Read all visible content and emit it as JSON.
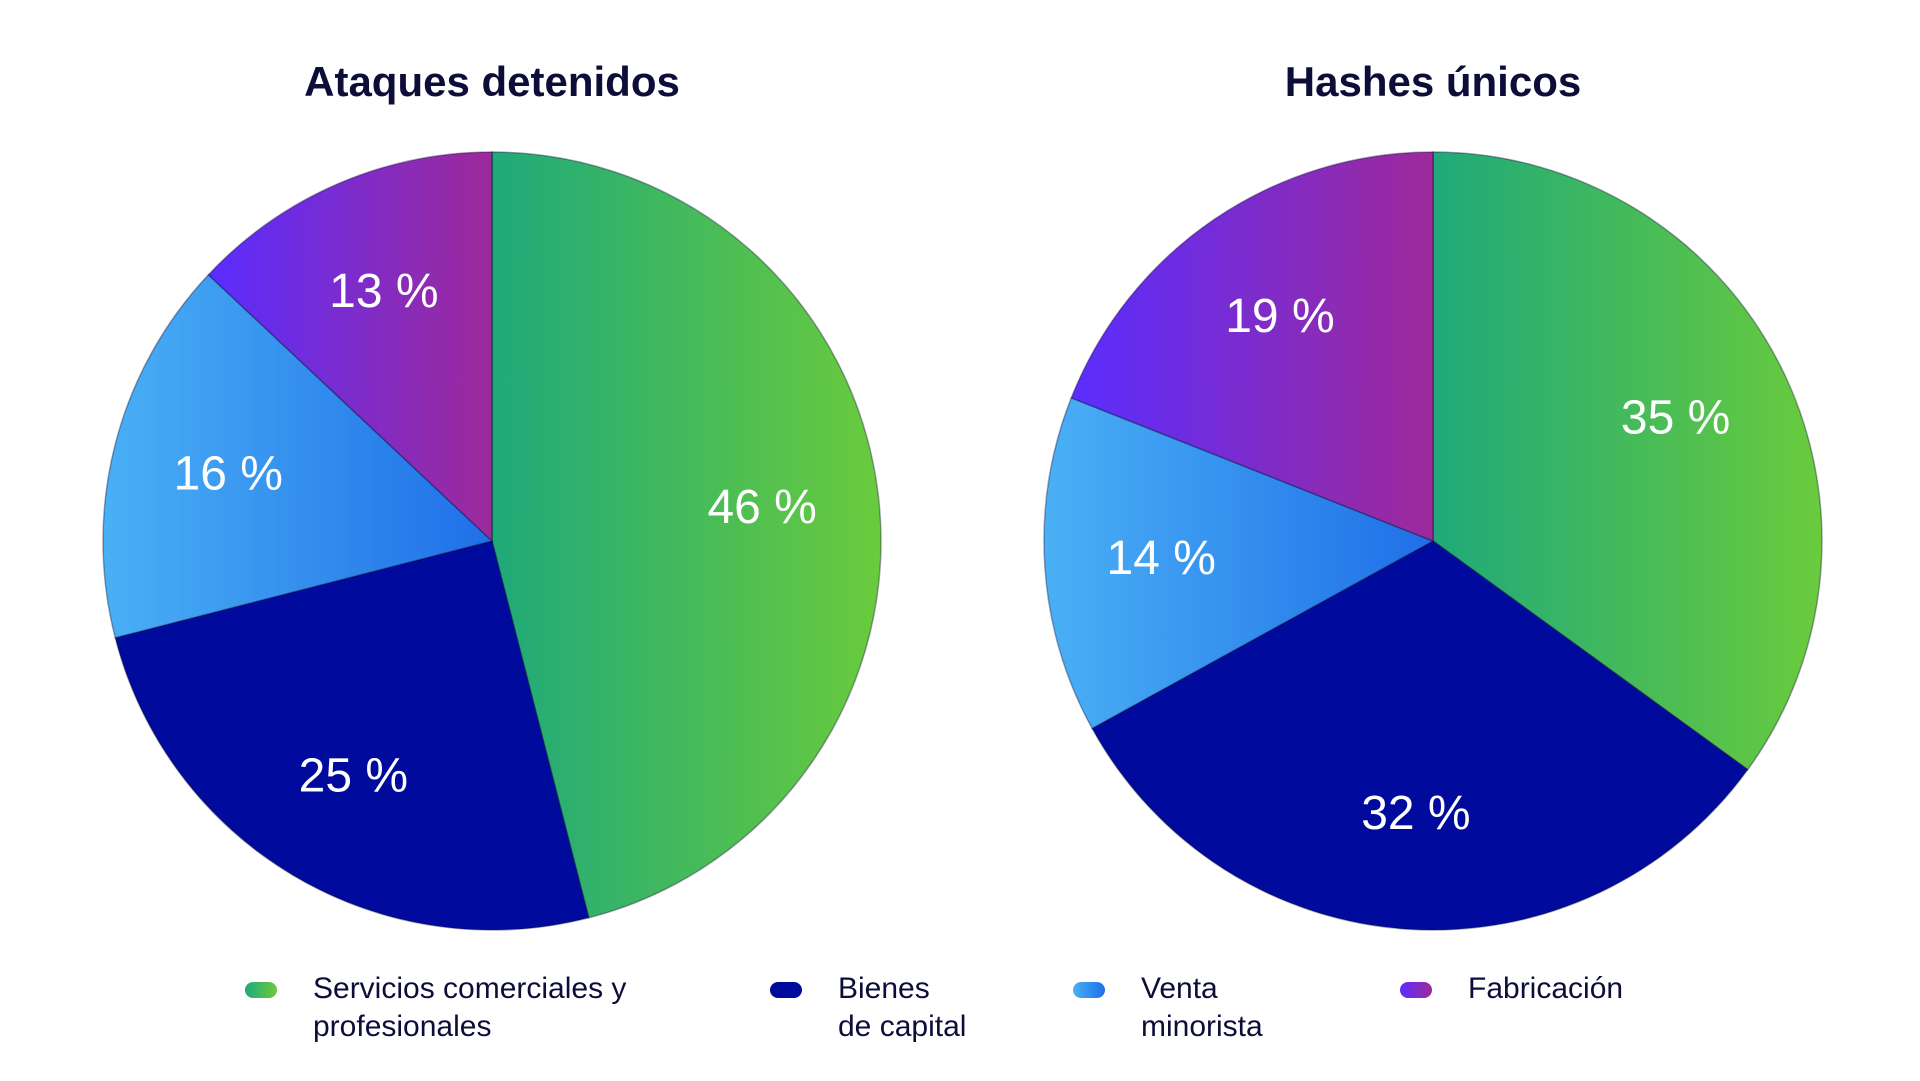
{
  "chart_data": [
    {
      "type": "pie",
      "title": "Ataques detenidos",
      "categories": [
        "Servicios comerciales y profesionales",
        "Bienes de capital",
        "Venta minorista",
        "Fabricación"
      ],
      "values": [
        46,
        25,
        16,
        13
      ],
      "labels": [
        "46 %",
        "25 %",
        "16 %",
        "13 %"
      ]
    },
    {
      "type": "pie",
      "title": "Hashes únicos",
      "categories": [
        "Servicios comerciales y profesionales",
        "Bienes de capital",
        "Venta minorista",
        "Fabricación"
      ],
      "values": [
        35,
        32,
        14,
        19
      ],
      "labels": [
        "35 %",
        "32 %",
        "14 %",
        "19 %"
      ]
    }
  ],
  "legend": [
    {
      "label": "Servicios comerciales y\nprofesionales",
      "colors": [
        "#1fa97a",
        "#6acb3c"
      ]
    },
    {
      "label": "Bienes\nde capital",
      "colors": [
        "#000b9e",
        "#000b9e"
      ]
    },
    {
      "label": "Venta\nminorista",
      "colors": [
        "#4ab0f5",
        "#1f6fe8"
      ]
    },
    {
      "label": "Fabricación",
      "colors": [
        "#5a2dff",
        "#9e2a9a"
      ]
    }
  ]
}
